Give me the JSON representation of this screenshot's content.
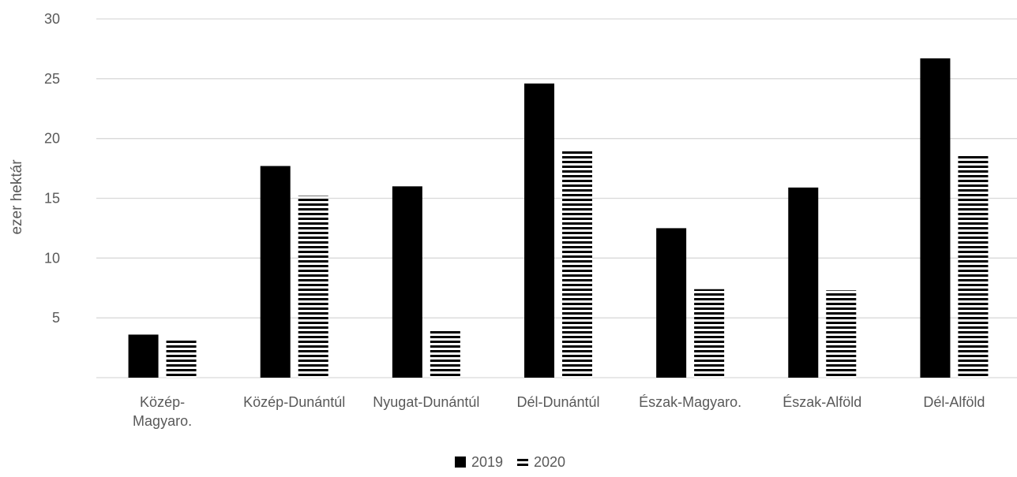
{
  "chart_data": {
    "type": "bar",
    "ylabel": "ezer hektár",
    "xlabel": "",
    "ylim": [
      0,
      30
    ],
    "yticks": [
      "5",
      "10",
      "15",
      "20",
      "25",
      "30"
    ],
    "grid": true,
    "legend_position": "bottom",
    "categories": [
      "Közép-Magyaro.",
      "Közép-Dunántúl",
      "Nyugat-Dunántúl",
      "Dél-Dunántúl",
      "Észak-Magyaro.",
      "Észak-Alföld",
      "Dél-Alföld"
    ],
    "category_label_lines": [
      [
        "Közép-",
        "Magyaro."
      ],
      [
        "Közép-Dunántúl"
      ],
      [
        "Nyugat-Dunántúl"
      ],
      [
        "Dél-Dunántúl"
      ],
      [
        "Észak-Magyaro."
      ],
      [
        "Észak-Alföld"
      ],
      [
        "Dél-Alföld"
      ]
    ],
    "series": [
      {
        "name": "2019",
        "values": [
          3.6,
          17.7,
          16.0,
          24.6,
          12.5,
          15.9,
          26.7
        ],
        "fill": "solid",
        "color": "#000000"
      },
      {
        "name": "2020",
        "values": [
          3.2,
          15.2,
          3.9,
          19.1,
          7.4,
          7.3,
          18.6
        ],
        "fill": "horizontal-stripes",
        "color": "#000000"
      }
    ]
  }
}
